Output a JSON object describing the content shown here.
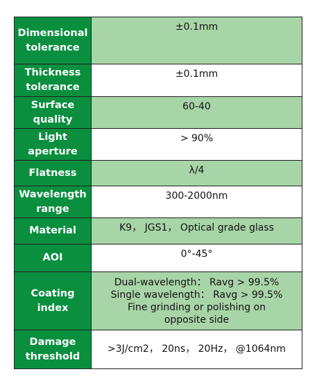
{
  "rows": [
    {
      "label_lines": [
        "Dimensional",
        "tolerance"
      ],
      "value_lines": [
        "±0.1mm"
      ],
      "shade": "green"
    },
    {
      "label_lines": [
        "Thickness",
        "tolerance"
      ],
      "value_lines": [
        "±0.1mm"
      ],
      "shade": "white"
    },
    {
      "label_lines": [
        "Surface",
        "quality"
      ],
      "value_lines": [
        "60-40"
      ],
      "shade": "green"
    },
    {
      "label_lines": [
        "Light",
        "aperture"
      ],
      "value_lines": [
        "> 90%"
      ],
      "shade": "white"
    },
    {
      "label_lines": [
        "Flatness"
      ],
      "value_lines": [
        "λ/4"
      ],
      "shade": "green"
    },
    {
      "label_lines": [
        "Wavelength",
        "range"
      ],
      "value_lines": [
        "300-2000nm"
      ],
      "shade": "white"
    },
    {
      "label_lines": [
        "Material"
      ],
      "value_lines": [
        "K9， JGS1， Optical grade glass"
      ],
      "shade": "green"
    },
    {
      "label_lines": [
        "AOI"
      ],
      "value_lines": [
        "0°-45°"
      ],
      "shade": "white"
    },
    {
      "label_lines": [
        "Coating",
        "index"
      ],
      "value_lines": [
        "Dual-wavelength： Ravg > 99.5%",
        "Single wavelength： Ravg > 99.5%",
        "Fine grinding or polishing on",
        "opposite side"
      ],
      "shade": "green"
    },
    {
      "label_lines": [
        "Damage",
        "threshold"
      ],
      "value_lines": [
        ">3J/cm2， 20ns， 20Hz， @1064nm"
      ],
      "shade": "white"
    }
  ],
  "colors": {
    "label_bg": "#0a8f3f",
    "label_text": "#ffffff",
    "value_green": "#a8d5a8",
    "value_white": "#ffffff",
    "border": "#1f1f1f"
  }
}
